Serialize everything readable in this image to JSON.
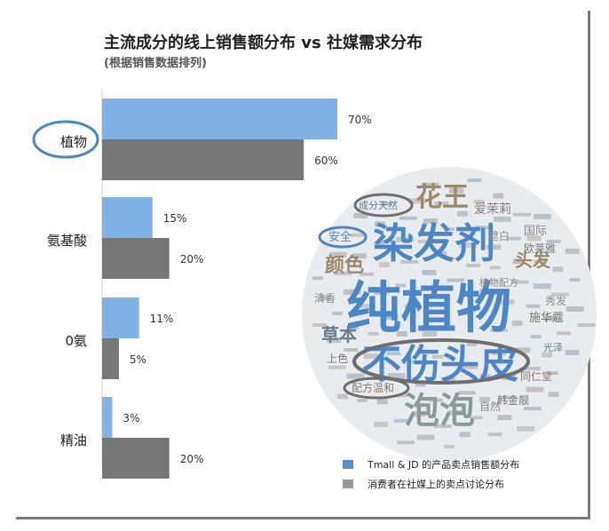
{
  "title": "主流成分的线上销售额分布 vs 社媒需求分布",
  "subtitle": "(根据销售数据排列)",
  "chart_data": {
    "type": "bar",
    "orientation": "horizontal",
    "categories": [
      "植物",
      "氨基酸",
      "0氨",
      "精油"
    ],
    "series": [
      {
        "name": "Tmall & JD 的产品卖点销售额分布",
        "values": [
          70,
          15,
          11,
          3
        ],
        "labels": [
          "70%",
          "15%",
          "11%",
          "3%"
        ],
        "color": "#7fb2e5"
      },
      {
        "name": "消费者在社媒上的卖点讨论分布",
        "values": [
          60,
          20,
          5,
          20
        ],
        "labels": [
          "60%",
          "20%",
          "5%",
          "20%"
        ],
        "color": "#777777"
      }
    ],
    "xlim": [
      0,
      70
    ],
    "highlighted_category": "植物",
    "legend_position": "bottom-right"
  },
  "word_cloud": {
    "words": [
      {
        "text": "纯植物",
        "emphasis": "highest",
        "color": "#4a86c8"
      },
      {
        "text": "染发剂",
        "emphasis": "high",
        "color": "#4a86c8"
      },
      {
        "text": "不伤头皮",
        "emphasis": "high",
        "color": "#4a86c8",
        "circled": true
      },
      {
        "text": "泡泡",
        "emphasis": "high",
        "color": "#8a9a9a"
      },
      {
        "text": "花王",
        "emphasis": "medium",
        "color": "#9a8a6a"
      },
      {
        "text": "颜色",
        "emphasis": "medium",
        "color": "#9a8a6a"
      },
      {
        "text": "草本",
        "emphasis": "medium",
        "color": "#6a7a8a"
      },
      {
        "text": "头发",
        "emphasis": "medium",
        "color": "#9a8a6a"
      },
      {
        "text": "成分天然",
        "emphasis": "small",
        "color": "#6a7a8a",
        "circled": true
      },
      {
        "text": "安全",
        "emphasis": "small",
        "color": "#4a86c8",
        "circled": true
      },
      {
        "text": "配方温和",
        "emphasis": "small",
        "color": "#8a7a6a",
        "circled": true
      },
      {
        "text": "爱茉莉",
        "emphasis": "small",
        "color": "#8a7a8a"
      },
      {
        "text": "施华蔻",
        "emphasis": "small",
        "color": "#6a7a6a"
      },
      {
        "text": "国际",
        "emphasis": "small",
        "color": "#8a8a8a"
      },
      {
        "text": "欧莱雅",
        "emphasis": "small",
        "color": "#7a7a7a"
      },
      {
        "text": "同仁堂",
        "emphasis": "small",
        "color": "#8a7a6a"
      },
      {
        "text": "秀发",
        "emphasis": "small",
        "color": "#8a8a8a"
      },
      {
        "text": "光泽",
        "emphasis": "small",
        "color": "#6a7a8a"
      },
      {
        "text": "遮白",
        "emphasis": "small",
        "color": "#8a8a8a"
      },
      {
        "text": "自然",
        "emphasis": "small",
        "color": "#8a8a8a"
      },
      {
        "text": "上色",
        "emphasis": "small",
        "color": "#7a7a7a"
      },
      {
        "text": "植物配方",
        "emphasis": "small",
        "color": "#8a8a8a"
      },
      {
        "text": "韩金靓",
        "emphasis": "small",
        "color": "#7a7a7a"
      },
      {
        "text": "清香",
        "emphasis": "small",
        "color": "#8a8a8a"
      }
    ]
  }
}
